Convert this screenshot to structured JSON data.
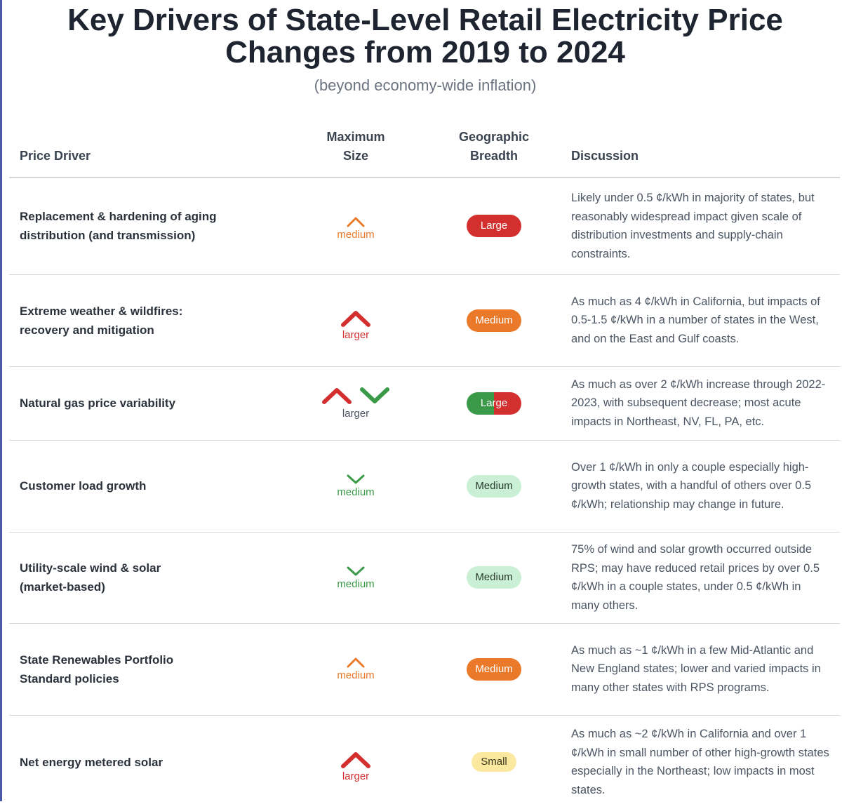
{
  "title_line1": "Key Drivers of State-Level Retail Electricity Price",
  "title_line2": "Changes from 2019 to 2024",
  "subtitle": "(beyond economy-wide inflation)",
  "headers": {
    "driver": "Price Driver",
    "size_line1": "Maximum",
    "size_line2": "Size",
    "breadth_line1": "Geographic",
    "breadth_line2": "Breadth",
    "discussion": "Discussion"
  },
  "colors": {
    "red": "#d32f2f",
    "orange": "#ea7a2a",
    "green": "#3a9a48",
    "light_green": "#c9f0d4",
    "yellow": "#fbe9a0"
  },
  "rows": [
    {
      "driver_line1": "Replacement & hardening of aging",
      "driver_line2": "distribution (and transmission)",
      "size": "medium",
      "size_icon": "chevron-up-icon",
      "breadth": "Large",
      "discussion": "Likely under 0.5 ¢/kWh in majority of states, but reasonably widespread impact given scale of distribution investments and supply-chain constraints."
    },
    {
      "driver_line1": "Extreme weather & wildfires:",
      "driver_line2": "recovery and mitigation",
      "size": "larger",
      "size_icon": "chevron-up-icon",
      "breadth": "Medium",
      "discussion": "As much as 4 ¢/kWh in California, but impacts of 0.5-1.5 ¢/kWh in a number of states in the West, and on the East and Gulf coasts."
    },
    {
      "driver_line1": "Natural gas price variability",
      "driver_line2": "",
      "size": "larger",
      "size_icon": "chevron-up-down-icon",
      "breadth": "Large",
      "discussion": "As much as over 2 ¢/kWh increase through 2022-2023, with subsequent decrease; most acute impacts in Northeast, NV, FL, PA, etc."
    },
    {
      "driver_line1": "Customer load growth",
      "driver_line2": "",
      "size": "medium",
      "size_icon": "chevron-down-icon",
      "breadth": "Medium",
      "discussion": "Over 1 ¢/kWh in only a couple especially high-growth states, with a handful of others over 0.5 ¢/kWh; relationship may change in future."
    },
    {
      "driver_line1": "Utility-scale wind & solar",
      "driver_line2": "(market-based)",
      "size": "medium",
      "size_icon": "chevron-down-icon",
      "breadth": "Medium",
      "discussion": "75% of wind and solar growth occurred outside RPS; may have reduced retail prices by over 0.5 ¢/kWh in a couple states, under 0.5 ¢/kWh in many others."
    },
    {
      "driver_line1": "State Renewables Portfolio",
      "driver_line2": "Standard policies",
      "size": "medium",
      "size_icon": "chevron-up-icon",
      "breadth": "Medium",
      "discussion": "As much as ~1 ¢/kWh in a few Mid-Atlantic and New England states; lower and varied impacts in many other states with RPS programs."
    },
    {
      "driver_line1": "Net energy metered solar",
      "driver_line2": "",
      "size": "larger",
      "size_icon": "chevron-up-icon",
      "breadth": "Small",
      "discussion": "As much as ~2 ¢/kWh in California and over 1 ¢/kWh in small number of other high-growth states especially in the Northeast; low impacts in most states."
    }
  ]
}
